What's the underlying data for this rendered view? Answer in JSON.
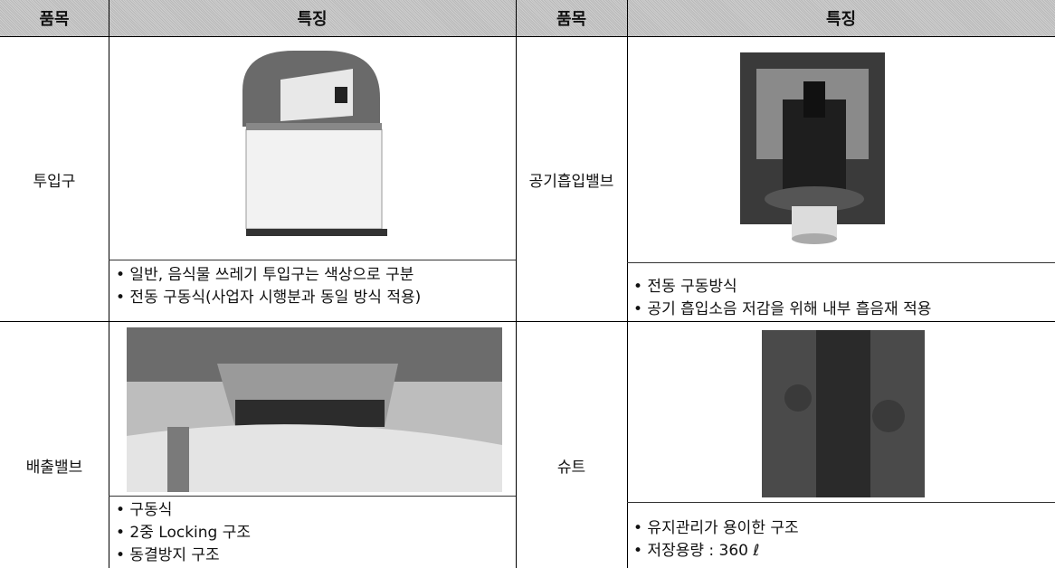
{
  "table": {
    "header": [
      "품목",
      "특징",
      "품목",
      "특징"
    ],
    "rows": [
      {
        "left": {
          "item": "투입구",
          "features": [
            "• 일반, 음식물 쓰레기 투입구는 색상으로 구분",
            "• 전동 구동식(사업자 시행분과 동일 방식 적용)"
          ]
        },
        "right": {
          "item": "공기흡입밸브",
          "features": [
            "• 전동 구동방식",
            "• 공기 흡입소음 저감을 위해 내부 흡음재 적용"
          ]
        }
      },
      {
        "left": {
          "item": "배출밸브",
          "features": [
            "• 구동식",
            "• 2중 Locking 구조",
            "• 동결방지 구조"
          ]
        },
        "right": {
          "item": "슈트",
          "features": [
            "• 유지관리가 용이한 구조",
            "• 저장용량 : 360 ℓ"
          ]
        }
      }
    ]
  }
}
